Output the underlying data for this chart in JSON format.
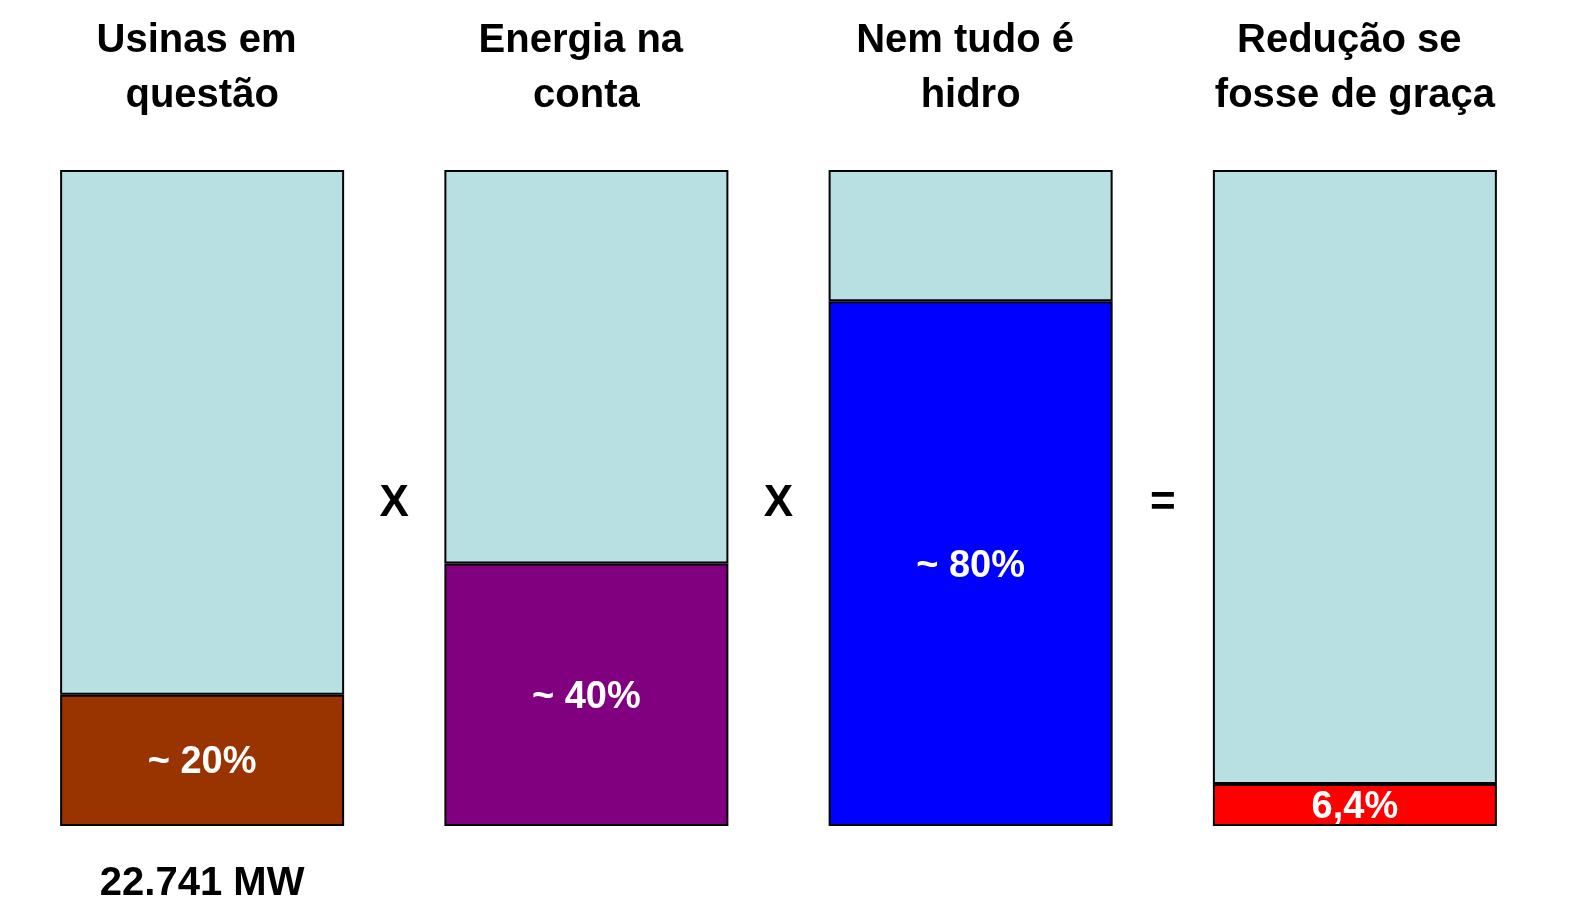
{
  "chart_data": {
    "type": "bar",
    "stacked": true,
    "categories": [
      "Usinas em questão",
      "Energia na conta",
      "Nem tudo é hidro",
      "Redução se fosse de graça"
    ],
    "series": [
      {
        "colors": [
          "#993300",
          "#800080",
          "#0000ff",
          "#ff0000"
        ],
        "values": [
          20,
          40,
          80,
          6.4
        ],
        "value_labels": [
          "~ 20%",
          "~ 40%",
          "~ 80%",
          "6,4%"
        ]
      },
      {
        "color": "#b8e0e2",
        "values": [
          80,
          60,
          20,
          93.6
        ]
      }
    ],
    "ylim": [
      0,
      100
    ],
    "tick_labels": "x",
    "annotations": [
      "22.741 MW",
      "X",
      "X",
      "="
    ]
  }
}
